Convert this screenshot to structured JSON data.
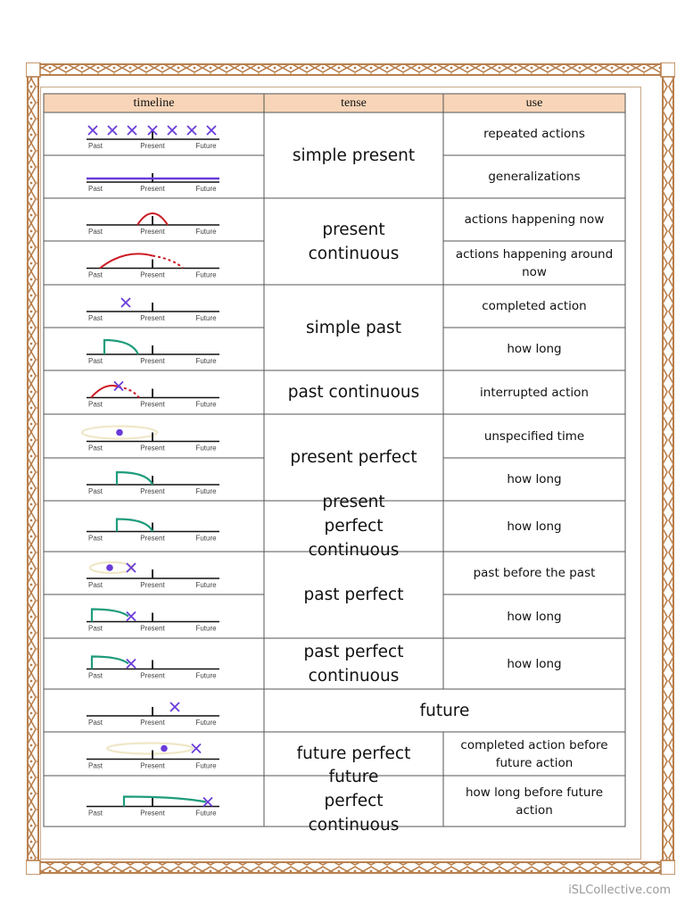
{
  "colors": {
    "border": "#b9804e",
    "header_bg": "#f8d5b8",
    "purple": "#6a3cd9",
    "red": "#cc1b25",
    "green": "#1f9c7c",
    "ellipse": "#efe7c7",
    "line": "#111111"
  },
  "header": {
    "timeline": "timeline",
    "tense": "tense",
    "use": "use"
  },
  "axis": {
    "past": "Past",
    "present": "Present",
    "future": "Future"
  },
  "tenses": [
    {
      "label": "simple present"
    },
    {
      "label": "present continuous"
    },
    {
      "label": "simple past"
    },
    {
      "label": "past continuous"
    },
    {
      "label": "present perfect"
    },
    {
      "label": "present perfect continuous"
    },
    {
      "label": "past perfect"
    },
    {
      "label": "past perfect continuous"
    },
    {
      "label": "future"
    },
    {
      "label": "future perfect"
    },
    {
      "label": "future perfect continuous"
    }
  ],
  "uses": [
    {
      "label": "repeated actions"
    },
    {
      "label": "generalizations"
    },
    {
      "label": "actions happening now"
    },
    {
      "label": "actions happening around now"
    },
    {
      "label": "completed action"
    },
    {
      "label": "how long"
    },
    {
      "label": "interrupted action"
    },
    {
      "label": "unspecified time"
    },
    {
      "label": "how long"
    },
    {
      "label": "how long"
    },
    {
      "label": "past before the past"
    },
    {
      "label": "how long"
    },
    {
      "label": "how long"
    },
    {
      "label": "completed action before future action"
    },
    {
      "label": "how long before future action"
    }
  ],
  "diagrams": [
    {
      "icon": "repeated-x-timeline-icon"
    },
    {
      "icon": "continuous-line-timeline-icon"
    },
    {
      "icon": "arc-now-timeline-icon"
    },
    {
      "icon": "arc-around-now-timeline-icon"
    },
    {
      "icon": "past-x-timeline-icon"
    },
    {
      "icon": "past-duration-timeline-icon"
    },
    {
      "icon": "interrupted-arc-timeline-icon"
    },
    {
      "icon": "unspecified-dot-timeline-icon"
    },
    {
      "icon": "duration-to-present-timeline-icon"
    },
    {
      "icon": "duration-to-present-continuous-timeline-icon"
    },
    {
      "icon": "dot-before-x-timeline-icon"
    },
    {
      "icon": "duration-to-x-timeline-icon"
    },
    {
      "icon": "duration-to-x-continuous-timeline-icon"
    },
    {
      "icon": "future-x-timeline-icon"
    },
    {
      "icon": "dot-before-future-x-timeline-icon"
    },
    {
      "icon": "duration-to-future-x-timeline-icon"
    }
  ],
  "watermark": "iSLCollective.com"
}
